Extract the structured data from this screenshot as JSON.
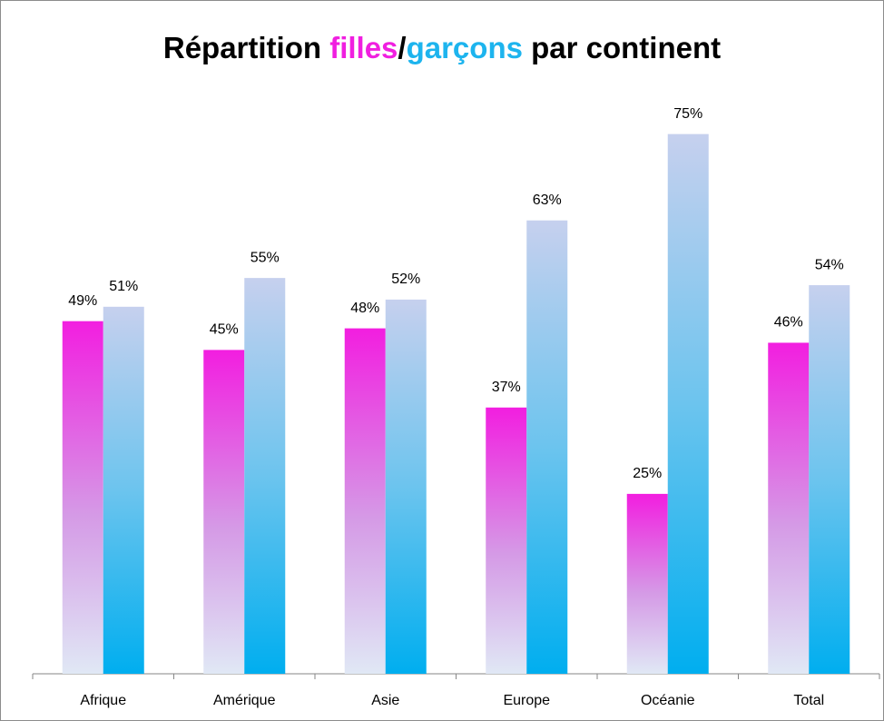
{
  "chart_data": {
    "type": "bar",
    "title": [
      {
        "text": "Répartition ",
        "color": "#000000"
      },
      {
        "text": "filles",
        "color": "#f01fe0"
      },
      {
        "text": "/",
        "color": "#000000"
      },
      {
        "text": "garçons",
        "color": "#1db4ee"
      },
      {
        "text": " par continent",
        "color": "#000000"
      }
    ],
    "categories": [
      "Afrique",
      "Amérique",
      "Asie",
      "Europe",
      "Océanie",
      "Total"
    ],
    "series": [
      {
        "color": "#f21ee0",
        "values": [
          49,
          45,
          48,
          37,
          25,
          46
        ],
        "value_labels": [
          "49%",
          "45%",
          "48%",
          "37%",
          "25%",
          "46%"
        ]
      },
      {
        "color": "#00aeef",
        "values": [
          51,
          55,
          52,
          63,
          75,
          54
        ],
        "value_labels": [
          "51%",
          "55%",
          "52%",
          "63%",
          "75%",
          "54%"
        ]
      }
    ],
    "ylim": [
      0,
      80
    ]
  }
}
